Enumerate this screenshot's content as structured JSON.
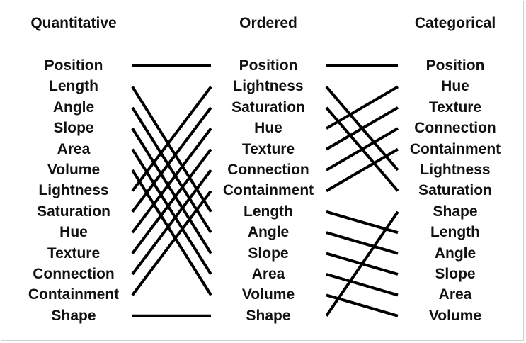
{
  "headers": {
    "quantitative": "Quantitative",
    "ordered": "Ordered",
    "categorical": "Categorical"
  },
  "columns": {
    "quantitative": [
      "Position",
      "Length",
      "Angle",
      "Slope",
      "Area",
      "Volume",
      "Lightness",
      "Saturation",
      "Hue",
      "Texture",
      "Connection",
      "Containment",
      "Shape"
    ],
    "ordered": [
      "Position",
      "Lightness",
      "Saturation",
      "Hue",
      "Texture",
      "Connection",
      "Containment",
      "Length",
      "Angle",
      "Slope",
      "Area",
      "Volume",
      "Shape"
    ],
    "categorical": [
      "Position",
      "Hue",
      "Texture",
      "Connection",
      "Containment",
      "Lightness",
      "Saturation",
      "Shape",
      "Length",
      "Angle",
      "Slope",
      "Area",
      "Volume"
    ]
  },
  "colors": {
    "text": "#111111",
    "lines": "#000000",
    "background": "#ffffff"
  }
}
